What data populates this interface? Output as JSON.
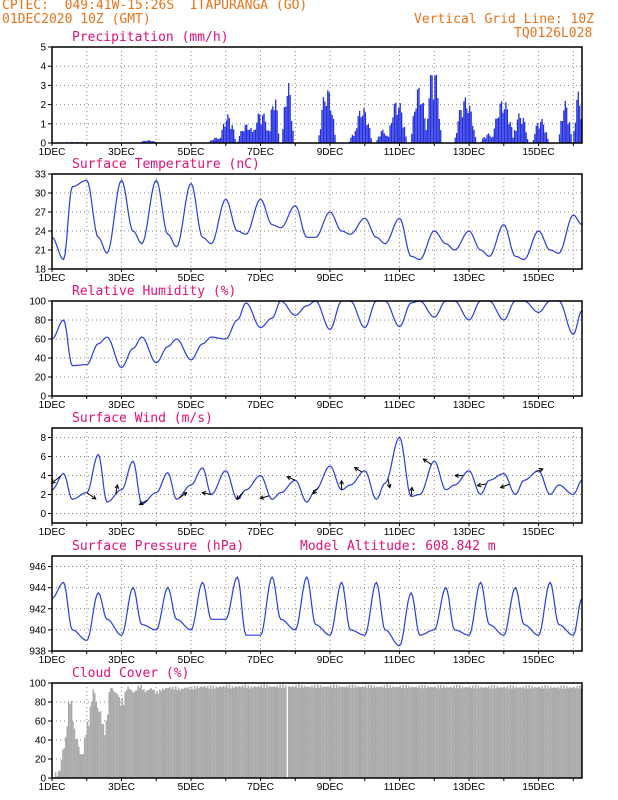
{
  "header": {
    "line1": "CPTEC:  049:41W-15:26S  ITAPURANGA (GO)",
    "line2": "01DEC2020 10Z (GMT)",
    "grid_note": "Vertical Grid Line: 10Z",
    "code": "TQ0126L028"
  },
  "x_labels": [
    "1DEC",
    "3DEC",
    "5DEC",
    "7DEC",
    "9DEC",
    "11DEC",
    "13DEC",
    "15DEC"
  ],
  "colors": {
    "line": "#2a3de0",
    "bars": "#2430e0",
    "cloud": "#aaaaaa",
    "title": "#e0107a",
    "header": "#e8731a"
  },
  "chart_data": [
    {
      "type": "bar",
      "title": "Precipitation (mm/h)",
      "ylim": [
        0,
        5
      ],
      "yticks": [
        0,
        1,
        2,
        3,
        4,
        5
      ],
      "xlim_hours": [
        0,
        366
      ],
      "bursts": [
        {
          "h": [
            2,
            30
          ],
          "amp": 0.05
        },
        {
          "h": [
            60,
            72
          ],
          "amp": 0.15
        },
        {
          "h": [
            108,
            120
          ],
          "amp": 0.3
        },
        {
          "h": [
            116,
            126
          ],
          "amp": 1.5
        },
        {
          "h": [
            128,
            140
          ],
          "amp": 1.0
        },
        {
          "h": [
            138,
            150
          ],
          "amp": 1.7
        },
        {
          "h": [
            150,
            156
          ],
          "amp": 2.6
        },
        {
          "h": [
            159,
            166
          ],
          "amp": 3.2
        },
        {
          "h": [
            184,
            195
          ],
          "amp": 2.9
        },
        {
          "h": [
            205,
            212
          ],
          "amp": 0.5
        },
        {
          "h": [
            208,
            220
          ],
          "amp": 1.9
        },
        {
          "h": [
            224,
            232
          ],
          "amp": 0.7
        },
        {
          "h": [
            232,
            244
          ],
          "amp": 2.3
        },
        {
          "h": [
            248,
            258
          ],
          "amp": 3.0
        },
        {
          "h": [
            258,
            268
          ],
          "amp": 4.1
        },
        {
          "h": [
            278,
            292
          ],
          "amp": 2.4
        },
        {
          "h": [
            296,
            306
          ],
          "amp": 0.5
        },
        {
          "h": [
            304,
            318
          ],
          "amp": 2.3
        },
        {
          "h": [
            318,
            328
          ],
          "amp": 1.6
        },
        {
          "h": [
            332,
            342
          ],
          "amp": 1.3
        },
        {
          "h": [
            350,
            358
          ],
          "amp": 2.2
        },
        {
          "h": [
            360,
            366
          ],
          "amp": 2.7
        }
      ]
    },
    {
      "type": "line",
      "title": "Surface Temperature (nC)",
      "ylim": [
        18,
        33
      ],
      "yticks": [
        18,
        21,
        24,
        27,
        30,
        33
      ],
      "x_hours": [
        0,
        8,
        14,
        24,
        32,
        38,
        48,
        56,
        62,
        72,
        80,
        86,
        96,
        104,
        110,
        120,
        128,
        134,
        144,
        152,
        158,
        168,
        176,
        182,
        192,
        200,
        206,
        216,
        224,
        230,
        240,
        248,
        254,
        264,
        272,
        278,
        288,
        296,
        302,
        312,
        320,
        326,
        336,
        344,
        350,
        360,
        366
      ],
      "values": [
        23,
        19.5,
        31,
        32,
        23,
        20.5,
        32,
        24,
        22,
        32,
        23.5,
        21.5,
        31.5,
        23,
        22,
        29,
        24,
        23.5,
        29,
        25,
        24.5,
        28,
        23,
        23,
        27,
        24,
        23.5,
        26,
        23,
        22,
        26,
        20,
        19.5,
        24,
        22,
        21,
        24,
        21,
        20,
        25,
        20,
        19.5,
        24,
        21,
        20.5,
        26.5,
        25
      ]
    },
    {
      "type": "line",
      "title": "Relative Humidity (%)",
      "ylim": [
        0,
        100
      ],
      "yticks": [
        0,
        20,
        40,
        60,
        80,
        100
      ],
      "x_hours": [
        0,
        8,
        14,
        24,
        32,
        38,
        48,
        56,
        62,
        72,
        80,
        86,
        96,
        104,
        110,
        120,
        128,
        134,
        144,
        152,
        158,
        168,
        176,
        182,
        192,
        200,
        206,
        216,
        224,
        230,
        240,
        248,
        254,
        264,
        272,
        278,
        288,
        296,
        302,
        312,
        320,
        326,
        336,
        344,
        350,
        360,
        366
      ],
      "values": [
        60,
        80,
        32,
        33,
        55,
        62,
        30,
        50,
        62,
        35,
        52,
        60,
        38,
        55,
        62,
        60,
        80,
        98,
        72,
        82,
        100,
        85,
        95,
        100,
        70,
        100,
        100,
        72,
        100,
        100,
        73,
        98,
        100,
        83,
        100,
        100,
        80,
        100,
        100,
        80,
        100,
        100,
        88,
        100,
        100,
        65,
        90
      ]
    },
    {
      "type": "line",
      "title": "Surface Wind (m/s)",
      "ylim": [
        -1,
        9
      ],
      "yticks": [
        0,
        2,
        4,
        6,
        8
      ],
      "x_hours": [
        0,
        8,
        14,
        24,
        32,
        38,
        48,
        56,
        62,
        72,
        80,
        86,
        96,
        104,
        110,
        120,
        128,
        134,
        144,
        152,
        158,
        168,
        176,
        182,
        192,
        200,
        206,
        216,
        224,
        230,
        240,
        248,
        254,
        264,
        272,
        278,
        288,
        296,
        302,
        312,
        320,
        326,
        336,
        344,
        350,
        360,
        366
      ],
      "values": [
        2.5,
        4.2,
        1.5,
        2.2,
        6.2,
        1.2,
        2.5,
        5.5,
        1.0,
        2.2,
        4.3,
        1.5,
        3.0,
        4.8,
        2.0,
        4.5,
        1.5,
        2.5,
        4.0,
        1.5,
        2.2,
        3.5,
        1.2,
        2.5,
        5.0,
        2.5,
        3.0,
        4.5,
        1.5,
        3.2,
        8.0,
        1.8,
        2.0,
        5.5,
        2.5,
        3.0,
        4.5,
        2.0,
        3.5,
        4.2,
        2.0,
        3.5,
        4.5,
        2.0,
        3.0,
        2.0,
        3.5
      ],
      "arrows_hours": [
        6,
        24,
        44,
        66,
        88,
        110,
        132,
        150,
        168,
        184,
        200,
        214,
        232,
        248,
        262,
        284,
        300,
        316,
        334
      ],
      "arrows_uv": [
        [
          -1,
          -0.8
        ],
        [
          1,
          -0.7
        ],
        [
          0.2,
          1
        ],
        [
          -0.9,
          -0.5
        ],
        [
          0.8,
          0.6
        ],
        [
          -1,
          0.2
        ],
        [
          -0.7,
          -0.8
        ],
        [
          -1,
          -0.3
        ],
        [
          -0.9,
          0.4
        ],
        [
          -0.6,
          -0.7
        ],
        [
          0,
          1
        ],
        [
          -0.8,
          0.5
        ],
        [
          0.2,
          -1
        ],
        [
          0.1,
          1
        ],
        [
          -0.9,
          0.6
        ],
        [
          -0.9,
          0
        ],
        [
          -1,
          -0.2
        ],
        [
          -1,
          -0.4
        ],
        [
          0.8,
          0.3
        ]
      ]
    },
    {
      "type": "line",
      "title": "Surface Pressure (hPa)",
      "altitude_label": "Model Altitude: 608.842 m",
      "ylim": [
        938,
        947
      ],
      "yticks": [
        938,
        940,
        942,
        944,
        946
      ],
      "x_hours": [
        0,
        8,
        14,
        24,
        32,
        38,
        48,
        56,
        62,
        72,
        80,
        86,
        96,
        104,
        110,
        120,
        128,
        134,
        144,
        152,
        158,
        168,
        176,
        182,
        192,
        200,
        206,
        216,
        224,
        230,
        240,
        248,
        254,
        264,
        272,
        278,
        288,
        296,
        302,
        312,
        320,
        326,
        336,
        344,
        350,
        360,
        366
      ],
      "values": [
        943,
        944.5,
        940,
        939,
        943.5,
        941,
        939.5,
        944,
        940.5,
        940,
        944,
        941,
        940,
        944.5,
        941,
        941,
        945,
        939.5,
        939.5,
        945,
        941,
        940,
        945,
        940.5,
        939.5,
        944.5,
        940,
        939.5,
        944.5,
        940,
        938.5,
        943.5,
        939.5,
        940,
        944,
        940,
        939.5,
        944.5,
        940.5,
        939.5,
        944,
        940.5,
        939.5,
        944.5,
        940.5,
        939.5,
        943
      ]
    },
    {
      "type": "area",
      "title": "Cloud Cover (%)",
      "ylim": [
        0,
        100
      ],
      "yticks": [
        0,
        20,
        40,
        60,
        80,
        100
      ],
      "x_hours": [
        0,
        4,
        8,
        12,
        16,
        20,
        24,
        28,
        32,
        36,
        40,
        44,
        48,
        52,
        56,
        60,
        64,
        68,
        72,
        76,
        80,
        84,
        88,
        92,
        96,
        100,
        104,
        108,
        112,
        116,
        120,
        124,
        128,
        132,
        136,
        140,
        366
      ],
      "values": [
        5,
        12,
        40,
        88,
        50,
        30,
        60,
        95,
        78,
        55,
        98,
        92,
        85,
        98,
        93,
        99,
        94,
        97,
        92,
        96,
        98,
        97,
        96,
        98,
        97,
        98,
        99,
        98,
        98,
        99,
        99,
        98,
        99,
        99,
        98,
        99,
        98
      ]
    }
  ]
}
